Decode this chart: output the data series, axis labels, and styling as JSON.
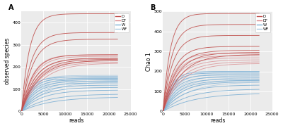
{
  "panel_A": {
    "title": "A",
    "xlabel": "reads",
    "ylabel": "observed species",
    "xlim": [
      0,
      25000
    ],
    "ylim": [
      0,
      450
    ],
    "yticks": [
      0,
      100,
      200,
      300,
      400
    ],
    "xticks": [
      0,
      5000,
      10000,
      15000,
      20000,
      25000
    ]
  },
  "panel_B": {
    "title": "B",
    "xlabel": "reads",
    "ylabel": "Chao 1",
    "xlim": [
      0,
      25000
    ],
    "ylim": [
      0,
      500
    ],
    "yticks": [
      0,
      100,
      200,
      300,
      400,
      500
    ],
    "xticks": [
      0,
      5000,
      10000,
      15000,
      20000,
      25000
    ]
  },
  "legend": {
    "labels": [
      "D",
      "DF",
      "W",
      "WF"
    ],
    "colors": [
      "#c0504d",
      "#d9868a",
      "#7bafd4",
      "#a8c8e0"
    ]
  },
  "curves": {
    "D": {
      "color": "#c0504d",
      "alpha": 0.9,
      "asymptotes_A": [
        440,
        355,
        325,
        255,
        240,
        235,
        230
      ],
      "rates_A": [
        0.00055,
        0.00045,
        0.0004,
        0.00038,
        0.00032,
        0.00028,
        0.00025
      ],
      "asymptotes_B": [
        490,
        435,
        380,
        325,
        305,
        295,
        285
      ],
      "rates_B": [
        0.0006,
        0.0005,
        0.00045,
        0.0004,
        0.00035,
        0.0003,
        0.00025
      ]
    },
    "DF": {
      "color": "#d9868a",
      "alpha": 0.75,
      "asymptotes_A": [
        255,
        248,
        238,
        228,
        222,
        218
      ],
      "rates_A": [
        0.0004,
        0.00036,
        0.00032,
        0.00028,
        0.00025,
        0.00022
      ],
      "asymptotes_B": [
        290,
        278,
        268,
        258,
        248,
        240
      ],
      "rates_B": [
        0.00042,
        0.00038,
        0.00034,
        0.0003,
        0.00027,
        0.00024
      ]
    },
    "W": {
      "color": "#7bafd4",
      "alpha": 0.9,
      "asymptotes_A": [
        155,
        148,
        142,
        136,
        128,
        118,
        108,
        96,
        78,
        65
      ],
      "rates_A": [
        0.0005,
        0.00045,
        0.0004,
        0.00035,
        0.00032,
        0.00028,
        0.00025,
        0.00022,
        0.00018,
        0.00015
      ],
      "asymptotes_B": [
        200,
        192,
        182,
        172,
        162,
        155,
        148,
        132,
        112,
        92
      ],
      "rates_B": [
        0.00052,
        0.00048,
        0.00043,
        0.00038,
        0.00033,
        0.00028,
        0.00025,
        0.00022,
        0.00018,
        0.00014
      ]
    },
    "WF": {
      "color": "#a8c8e0",
      "alpha": 0.75,
      "asymptotes_A": [
        162,
        158,
        152,
        146,
        140,
        135
      ],
      "rates_A": [
        0.00042,
        0.00036,
        0.0003,
        0.00026,
        0.00022,
        0.00018
      ],
      "asymptotes_B": [
        198,
        188,
        178,
        168,
        158,
        148
      ],
      "rates_B": [
        0.00042,
        0.00036,
        0.0003,
        0.00026,
        0.00022,
        0.00018
      ]
    }
  }
}
